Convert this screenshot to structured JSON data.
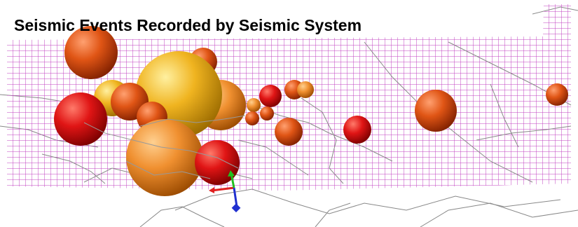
{
  "header": {
    "title": "Seismic Events Recorded by Seismic System"
  }
}
